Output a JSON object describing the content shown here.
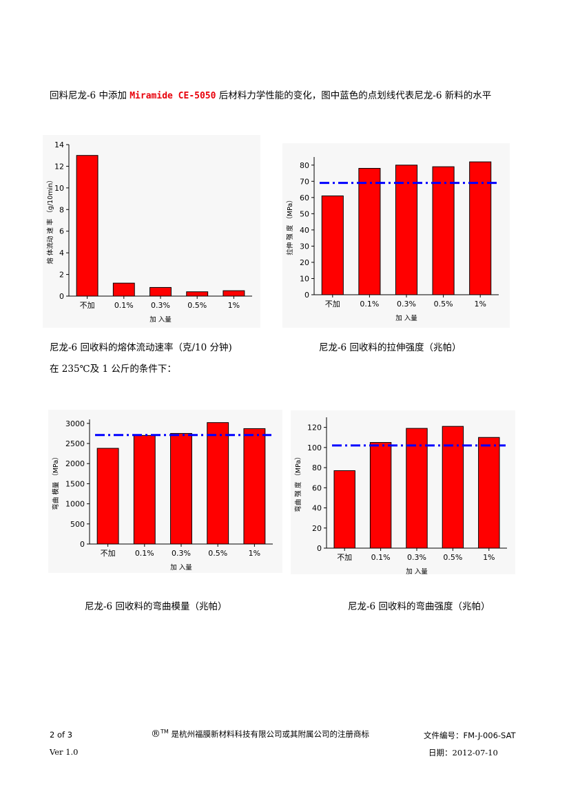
{
  "intro": {
    "before": "回料尼龙-6 中添加 ",
    "brand": "Miramide CE-5050",
    "after": " 后材料力学性能的变化，图中蓝色的点划线代表尼龙-6 新料的水平"
  },
  "captions": {
    "chart1": "尼龙-6 回收料的熔体流动速率（克/10 分钟)",
    "chart1_note": "在 235℃及 1 公斤的条件下：",
    "chart2": "尼龙-6 回收料的拉伸强度（兆帕）",
    "chart3": "尼龙-6 回收料的弯曲模量（兆帕）",
    "chart4": "尼龙-6 回收料的弯曲强度（兆帕）"
  },
  "chart_data": [
    {
      "type": "bar",
      "categories": [
        "不加",
        "0.1%",
        "0.3%",
        "0.5%",
        "1%"
      ],
      "values": [
        13.0,
        1.2,
        0.8,
        0.4,
        0.5
      ],
      "xlabel": "加 入量",
      "ylabel": "熔 体流动 速 率 （g/10min）",
      "ylim": [
        0,
        14
      ],
      "yticks": [
        0,
        2,
        4,
        6,
        8,
        10,
        12,
        14
      ],
      "reference": null,
      "bar_color": "#ff0000",
      "ref_color": "#0000ff"
    },
    {
      "type": "bar",
      "categories": [
        "不加",
        "0.1%",
        "0.3%",
        "0.5%",
        "1%"
      ],
      "values": [
        61,
        78,
        80,
        79,
        82
      ],
      "xlabel": "加 入量",
      "ylabel": "拉伸 强 度 （MPa）",
      "ylim": [
        0,
        85
      ],
      "yticks": [
        0,
        10,
        20,
        30,
        40,
        50,
        60,
        70,
        80
      ],
      "reference": 69,
      "bar_color": "#ff0000",
      "ref_color": "#0000ff"
    },
    {
      "type": "bar",
      "categories": [
        "不加",
        "0.1%",
        "0.3%",
        "0.5%",
        "1%"
      ],
      "values": [
        2380,
        2700,
        2750,
        3020,
        2870
      ],
      "xlabel": "加 入量",
      "ylabel": "弯曲 模量 （MPa）",
      "ylim": [
        0,
        3100
      ],
      "yticks": [
        0,
        500,
        1000,
        1500,
        2000,
        2500,
        3000
      ],
      "reference": 2710,
      "bar_color": "#ff0000",
      "ref_color": "#0000ff"
    },
    {
      "type": "bar",
      "categories": [
        "不加",
        "0.1%",
        "0.3%",
        "0.5%",
        "1%"
      ],
      "values": [
        77,
        105,
        119,
        121,
        110
      ],
      "xlabel": "加 入量",
      "ylabel": "弯曲 强 度 （MPa）",
      "ylim": [
        0,
        130
      ],
      "yticks": [
        0,
        20,
        40,
        60,
        80,
        100,
        120
      ],
      "reference": 102,
      "bar_color": "#ff0000",
      "ref_color": "#0000ff"
    }
  ],
  "footer": {
    "page": "2 of 3",
    "version": "Ver 1.0",
    "trademark_symbol": "®",
    "trademark_tm": "TM",
    "trademark_text": " 是杭州福膜新材料科技有限公司或其附属公司的注册商标",
    "doc_label": "文件编号：",
    "doc_number": "FM-J-006-SAT",
    "date_label": "日期：",
    "date": "2012-07-10"
  }
}
